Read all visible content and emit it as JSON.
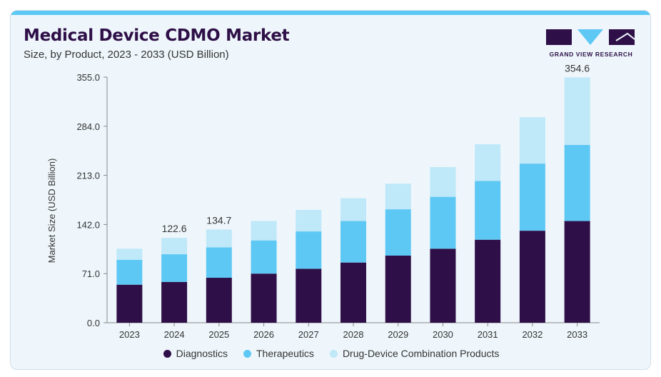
{
  "header": {
    "title": "Medical Device CDMO Market",
    "subtitle": "Size, by Product, 2023 - 2033 (USD Billion)"
  },
  "logo": {
    "text": "GRAND VIEW RESEARCH"
  },
  "colors": {
    "diagnostics": "#2e0f47",
    "therapeutics": "#5ec8f5",
    "combination": "#bfe8f8",
    "accent": "#5ec8f5"
  },
  "chart_data": {
    "type": "bar",
    "stacked": true,
    "categories": [
      "2023",
      "2024",
      "2025",
      "2026",
      "2027",
      "2028",
      "2029",
      "2030",
      "2031",
      "2032",
      "2033"
    ],
    "series": [
      {
        "name": "Diagnostics",
        "values": [
          55,
          59,
          65,
          71,
          78,
          87,
          97,
          107,
          120,
          133,
          147
        ]
      },
      {
        "name": "Therapeutics",
        "values": [
          36,
          40,
          44,
          48,
          54,
          60,
          67,
          75,
          85,
          97,
          110
        ]
      },
      {
        "name": "Drug-Device Combination Products",
        "values": [
          16,
          23.6,
          25.7,
          28,
          31,
          33,
          37,
          43,
          53,
          67,
          97.6
        ]
      }
    ],
    "ylabel": "Market Size (USD Billion)",
    "ylim": [
      0,
      355
    ],
    "yticks": [
      "0.0",
      "71.0",
      "142.0",
      "213.0",
      "284.0",
      "355.0"
    ],
    "annotations": [
      {
        "category": "2024",
        "label": "122.6"
      },
      {
        "category": "2025",
        "label": "134.7"
      },
      {
        "category": "2033",
        "label": "354.6"
      }
    ],
    "grid": false,
    "legend": "bottom-center"
  }
}
